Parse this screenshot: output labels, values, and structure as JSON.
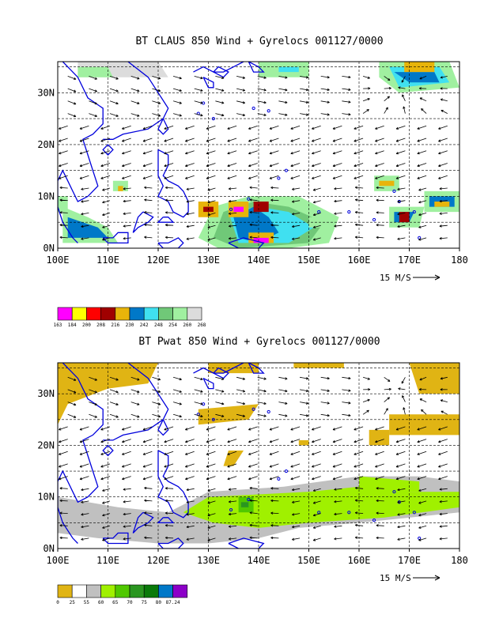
{
  "chart_data": [
    {
      "type": "map",
      "title": "BT CLAUS 850 Wind + Gyrelocs 001127/0000",
      "x_ticks": [
        "100E",
        "110E",
        "120E",
        "130E",
        "140E",
        "150E",
        "160E",
        "170E",
        "180"
      ],
      "y_ticks": [
        "0N",
        "10N",
        "20N",
        "30N"
      ],
      "xlim_deg_east": [
        100,
        180
      ],
      "ylim_deg_north": [
        0,
        36
      ],
      "grid": true,
      "vector_reference": "15 M/S",
      "colorbar": {
        "labels": [
          "163",
          "184",
          "200",
          "208",
          "216",
          "230",
          "242",
          "248",
          "254",
          "260",
          "268"
        ],
        "colors": [
          "#ff00ff",
          "#ffff00",
          "#ff0000",
          "#a00000",
          "#e8b40a",
          "#0078c8",
          "#40e0f0",
          "#70c878",
          "#a0f0a0",
          "#dcdcdc"
        ]
      }
    },
    {
      "type": "map",
      "title": "BT Pwat 850 Wind + Gyrelocs 001127/0000",
      "x_ticks": [
        "100E",
        "110E",
        "120E",
        "130E",
        "140E",
        "150E",
        "160E",
        "170E",
        "180"
      ],
      "y_ticks": [
        "0N",
        "10N",
        "20N",
        "30N"
      ],
      "xlim_deg_east": [
        100,
        180
      ],
      "ylim_deg_north": [
        0,
        36
      ],
      "grid": true,
      "vector_reference": "15 M/S",
      "colorbar": {
        "labels": [
          "0",
          "25",
          "55",
          "60",
          "65",
          "70",
          "75",
          "80",
          "87.24"
        ],
        "colors": [
          "#e0b414",
          "#ffffff",
          "#c0c0c0",
          "#a0f000",
          "#50c800",
          "#2a9620",
          "#0a7a0a",
          "#0078c8",
          "#8c00c8"
        ]
      }
    }
  ],
  "colors": {
    "coastline": "#0000dc",
    "frame": "#000000",
    "arrow": "#000000"
  }
}
